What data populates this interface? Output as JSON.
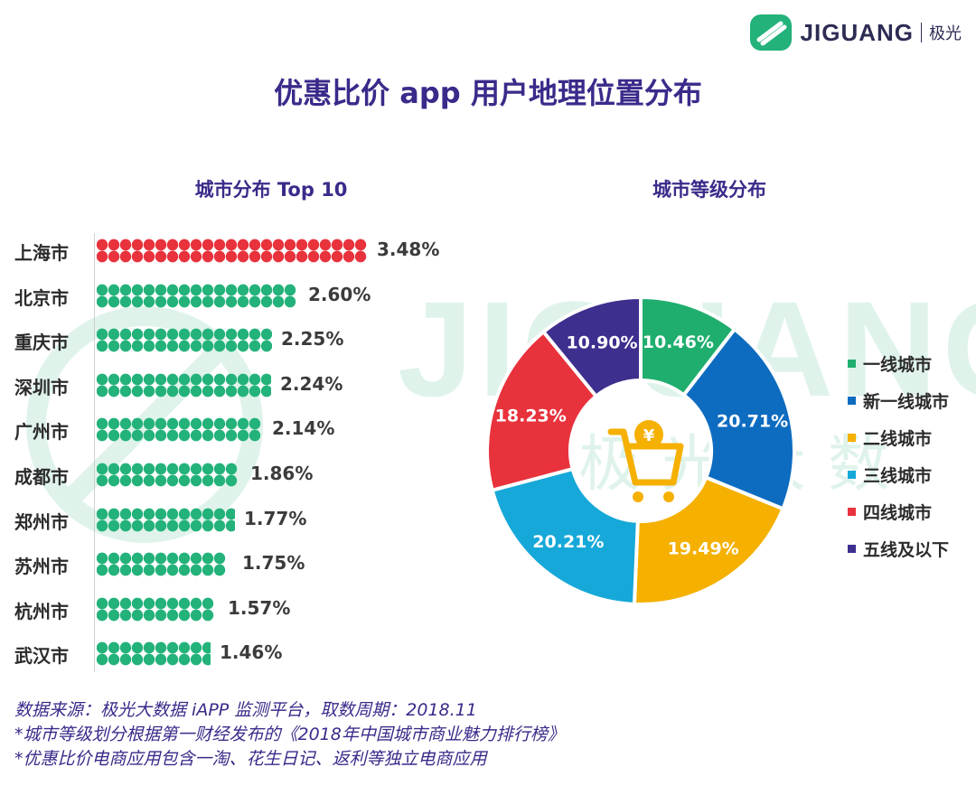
{
  "logo": {
    "text": "JIGUANG",
    "cn": "极光",
    "icon": "jiguang-logo-icon"
  },
  "title": "优惠比价 app 用户地理位置分布",
  "watermark": {
    "text": "JIGUANG",
    "cn": "极光大数据"
  },
  "colors": {
    "title": "#3b2a8a",
    "green": "#23b27a",
    "red": "#e8323c",
    "tier1": "#1fae6e",
    "newtier1": "#0e6cc0",
    "tier2": "#f5b000",
    "tier3": "#16a8d8",
    "tier4": "#e8323c",
    "tier5": "#3d2f8e"
  },
  "center_icon": "shopping-cart-yuan-icon",
  "center_icon_text": "¥",
  "chart_data": [
    {
      "type": "bar",
      "title": "城市分布 Top 10",
      "categories": [
        "上海市",
        "北京市",
        "重庆市",
        "深圳市",
        "广州市",
        "成都市",
        "郑州市",
        "苏州市",
        "杭州市",
        "武汉市"
      ],
      "values": [
        3.48,
        2.6,
        2.25,
        2.24,
        2.14,
        1.86,
        1.77,
        1.75,
        1.57,
        1.46
      ],
      "labels": [
        "3.48%",
        "2.60%",
        "2.25%",
        "2.24%",
        "2.14%",
        "1.86%",
        "1.77%",
        "1.75%",
        "1.57%",
        "1.46%"
      ],
      "orientation": "horizontal",
      "unit": "%",
      "xlim": [
        0,
        3.48
      ]
    },
    {
      "type": "pie",
      "title": "城市等级分布",
      "donut": true,
      "categories": [
        "一线城市",
        "新一线城市",
        "二线城市",
        "三线城市",
        "四线城市",
        "五线及以下"
      ],
      "values": [
        10.46,
        20.71,
        19.49,
        20.21,
        18.23,
        10.9
      ],
      "labels": [
        "10.46%",
        "20.71%",
        "19.49%",
        "20.21%",
        "18.23%",
        "10.90%"
      ],
      "legend_position": "right"
    }
  ],
  "notes": [
    "数据来源：极光大数据 iAPP 监测平台，取数周期：2018.11",
    "*城市等级划分根据第一财经发布的《2018年中国城市商业魅力排行榜》",
    "*优惠比价电商应用包含一淘、花生日记、返利等独立电商应用"
  ]
}
